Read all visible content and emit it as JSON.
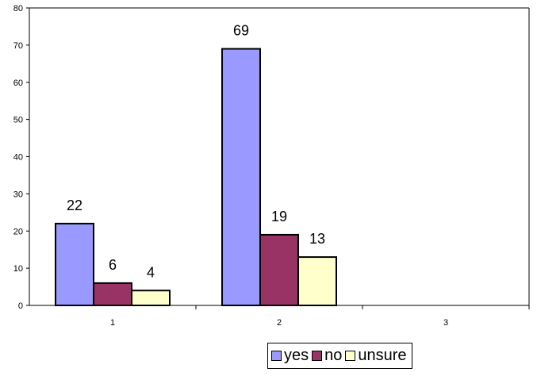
{
  "chart_data": {
    "type": "bar",
    "title": "",
    "xlabel": "",
    "ylabel": "",
    "categories": [
      "1",
      "2",
      "3"
    ],
    "series": [
      {
        "name": "yes",
        "values": [
          22,
          69,
          null
        ],
        "color": "#9999ff"
      },
      {
        "name": "no",
        "values": [
          6,
          19,
          null
        ],
        "color": "#993366"
      },
      {
        "name": "unsure",
        "values": [
          4,
          13,
          null
        ],
        "color": "#ffffcc"
      }
    ],
    "ylim": [
      0,
      80
    ],
    "y_ticks": [
      0,
      10,
      20,
      30,
      40,
      50,
      60,
      70,
      80
    ],
    "grid": false,
    "data_labels": true,
    "legend_position": "bottom",
    "axis_color": "#000000",
    "bar_outline_color": "#000000"
  }
}
